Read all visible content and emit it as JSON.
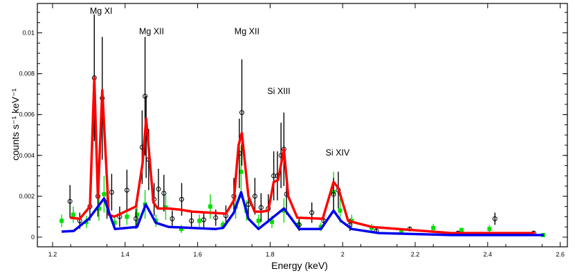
{
  "chart_data": {
    "type": "scatter",
    "title": "",
    "xlabel": "Energy (keV)",
    "ylabel": "counts s⁻¹ keV⁻¹",
    "xlim": [
      1.155,
      2.62
    ],
    "ylim": [
      -0.00045,
      0.0114
    ],
    "xticks": [
      "1.2",
      "1.4",
      "1.6",
      "1.8",
      "2",
      "2.2",
      "2.4",
      "2.6"
    ],
    "xtick_values": [
      1.2,
      1.4,
      1.6,
      1.8,
      2.0,
      2.2,
      2.4,
      2.6
    ],
    "yticks": [
      "0",
      "0.002",
      "0.004",
      "0.006",
      "0.008",
      "0.01"
    ],
    "ytick_values": [
      0,
      0.002,
      0.004,
      0.006,
      0.008,
      0.01
    ],
    "grid": false,
    "colors": {
      "data1": "#000000",
      "data2": "#00e000",
      "model1": "#ff0000",
      "model2": "#0000ee"
    },
    "annotations": [
      {
        "text": "Mg XI",
        "x": 1.334,
        "y": 0.0111
      },
      {
        "text": "Mg XII",
        "x": 1.473,
        "y": 0.0101
      },
      {
        "text": "Mg XII",
        "x": 1.736,
        "y": 0.0101
      },
      {
        "text": "Si XIII",
        "x": 1.824,
        "y": 0.00717
      },
      {
        "text": "Si XIV",
        "x": 1.986,
        "y": 0.00416
      }
    ],
    "series": [
      {
        "kind": "points-open-circle",
        "color": "#000000",
        "points": [
          [
            1.248,
            0.00175,
            0.0008
          ],
          [
            1.275,
            0.0008,
            0.0004
          ],
          [
            1.303,
            0.0015,
            0.0007
          ],
          [
            1.315,
            0.0078,
            0.0031
          ],
          [
            1.325,
            0.002,
            0.001
          ],
          [
            1.337,
            0.0068,
            0.003
          ],
          [
            1.35,
            0.0017,
            0.0008
          ],
          [
            1.363,
            0.0022,
            0.0009
          ],
          [
            1.385,
            0.001,
            0.0005
          ],
          [
            1.405,
            0.0023,
            0.001
          ],
          [
            1.43,
            0.0009,
            0.0005
          ],
          [
            1.447,
            0.0044,
            0.0018
          ],
          [
            1.455,
            0.0069,
            0.0029
          ],
          [
            1.458,
            0.0049,
            0.002
          ],
          [
            1.465,
            0.0038,
            0.0015
          ],
          [
            1.48,
            0.00185,
            0.0008
          ],
          [
            1.492,
            0.00235,
            0.001
          ],
          [
            1.507,
            0.00215,
            0.0009
          ],
          [
            1.53,
            0.0009,
            0.0004
          ],
          [
            1.556,
            0.00185,
            0.0008
          ],
          [
            1.583,
            0.0008,
            0.0004
          ],
          [
            1.617,
            0.00085,
            0.0004
          ],
          [
            1.65,
            0.00095,
            0.0004
          ],
          [
            1.678,
            0.00105,
            0.0005
          ],
          [
            1.7,
            0.002,
            0.0009
          ],
          [
            1.715,
            0.0041,
            0.0017
          ],
          [
            1.722,
            0.0061,
            0.0026
          ],
          [
            1.74,
            0.0016,
            0.0007
          ],
          [
            1.758,
            0.002,
            0.0009
          ],
          [
            1.775,
            0.00145,
            0.0007
          ],
          [
            1.795,
            0.0014,
            0.0007
          ],
          [
            1.81,
            0.003,
            0.0012
          ],
          [
            1.82,
            0.003,
            0.0012
          ],
          [
            1.83,
            0.004,
            0.0016
          ],
          [
            1.838,
            0.0043,
            0.0018
          ],
          [
            1.845,
            0.0021,
            0.001
          ],
          [
            1.88,
            0.0006,
            0.0003
          ],
          [
            1.915,
            0.0012,
            0.0005
          ],
          [
            1.948,
            0.0008,
            0.0003
          ],
          [
            1.975,
            0.0021,
            0.0008
          ],
          [
            1.988,
            0.0023,
            0.0009
          ],
          [
            2.02,
            0.0006,
            0.0003
          ],
          [
            2.093,
            0.0003,
            0.0001
          ],
          [
            2.185,
            0.0004,
            0.0001
          ],
          [
            2.318,
            0.0002,
            0.0001
          ],
          [
            2.42,
            0.0009,
            0.0003
          ],
          [
            2.527,
            0.0002,
            0.0001
          ]
        ]
      },
      {
        "kind": "points-filled-square",
        "color": "#00e000",
        "points": [
          [
            1.225,
            0.0008,
            0.0003
          ],
          [
            1.257,
            0.0011,
            0.0004
          ],
          [
            1.293,
            0.00075,
            0.0003
          ],
          [
            1.328,
            0.0014,
            0.0006
          ],
          [
            1.342,
            0.0021,
            0.0009
          ],
          [
            1.371,
            0.0007,
            0.0003
          ],
          [
            1.405,
            0.001,
            0.0004
          ],
          [
            1.433,
            0.0011,
            0.0005
          ],
          [
            1.455,
            0.0016,
            0.0007
          ],
          [
            1.485,
            0.0008,
            0.0003
          ],
          [
            1.512,
            0.00145,
            0.0006
          ],
          [
            1.555,
            0.0004,
            0.0002
          ],
          [
            1.605,
            0.0008,
            0.0003
          ],
          [
            1.635,
            0.0015,
            0.0006
          ],
          [
            1.67,
            0.0006,
            0.0002
          ],
          [
            1.705,
            0.0015,
            0.0006
          ],
          [
            1.72,
            0.0032,
            0.0013
          ],
          [
            1.735,
            0.0013,
            0.0005
          ],
          [
            1.768,
            0.0008,
            0.0003
          ],
          [
            1.805,
            0.00075,
            0.0003
          ],
          [
            1.838,
            0.0013,
            0.0006
          ],
          [
            1.878,
            0.0006,
            0.0002
          ],
          [
            1.94,
            0.0005,
            0.0002
          ],
          [
            1.975,
            0.0022,
            0.001
          ],
          [
            1.993,
            0.0013,
            0.0006
          ],
          [
            2.025,
            0.0008,
            0.0003
          ],
          [
            2.08,
            0.00045,
            0.0002
          ],
          [
            2.162,
            0.0003,
            0.0001
          ],
          [
            2.25,
            0.00045,
            0.0002
          ],
          [
            2.328,
            0.00035,
            0.0001
          ],
          [
            2.405,
            0.0004,
            0.0002
          ],
          [
            2.553,
            0.0001,
            5e-05
          ]
        ]
      },
      {
        "kind": "line",
        "color": "#ff0000",
        "points": [
          [
            1.248,
            0.00095
          ],
          [
            1.275,
            0.0009
          ],
          [
            1.303,
            0.0015
          ],
          [
            1.315,
            0.0078
          ],
          [
            1.325,
            0.0019
          ],
          [
            1.337,
            0.0072
          ],
          [
            1.355,
            0.0011
          ],
          [
            1.37,
            0.001
          ],
          [
            1.43,
            0.0015
          ],
          [
            1.448,
            0.0036
          ],
          [
            1.458,
            0.0058
          ],
          [
            1.478,
            0.0017
          ],
          [
            1.49,
            0.0014
          ],
          [
            1.52,
            0.0014
          ],
          [
            1.55,
            0.00135
          ],
          [
            1.585,
            0.00125
          ],
          [
            1.678,
            0.00115
          ],
          [
            1.7,
            0.0018
          ],
          [
            1.713,
            0.0045
          ],
          [
            1.722,
            0.0051
          ],
          [
            1.74,
            0.002
          ],
          [
            1.757,
            0.00125
          ],
          [
            1.778,
            0.00125
          ],
          [
            1.795,
            0.0013
          ],
          [
            1.81,
            0.0027
          ],
          [
            1.822,
            0.0028
          ],
          [
            1.838,
            0.0043
          ],
          [
            1.85,
            0.002
          ],
          [
            1.875,
            0.00095
          ],
          [
            1.945,
            0.0009
          ],
          [
            1.975,
            0.0027
          ],
          [
            1.988,
            0.0024
          ],
          [
            2.015,
            0.0008
          ],
          [
            2.08,
            0.0005
          ],
          [
            2.3,
            0.0002
          ],
          [
            2.53,
            0.0002
          ]
        ]
      },
      {
        "kind": "line",
        "color": "#0000ee",
        "points": [
          [
            1.225,
            0.00027
          ],
          [
            1.258,
            0.0003
          ],
          [
            1.3,
            0.0009
          ],
          [
            1.342,
            0.0019
          ],
          [
            1.372,
            0.0004
          ],
          [
            1.433,
            0.0005
          ],
          [
            1.457,
            0.0016
          ],
          [
            1.485,
            0.0007
          ],
          [
            1.52,
            0.0005
          ],
          [
            1.65,
            0.0004
          ],
          [
            1.67,
            0.00045
          ],
          [
            1.7,
            0.0012
          ],
          [
            1.72,
            0.0022
          ],
          [
            1.74,
            0.0009
          ],
          [
            1.768,
            0.0004
          ],
          [
            1.838,
            0.0014
          ],
          [
            1.88,
            0.0004
          ],
          [
            1.94,
            0.0004
          ],
          [
            1.975,
            0.0013
          ],
          [
            1.995,
            0.0008
          ],
          [
            2.025,
            0.0004
          ],
          [
            2.1,
            0.0002
          ],
          [
            2.3,
            0.0001
          ],
          [
            2.555,
            0.0001
          ]
        ]
      }
    ]
  }
}
